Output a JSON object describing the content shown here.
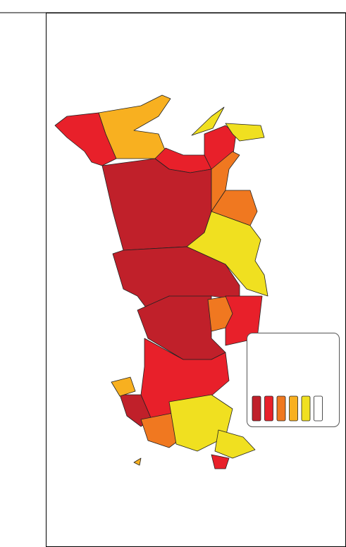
{
  "legend": {
    "colors": [
      "#c0202a",
      "#e8202a",
      "#f07820",
      "#f8b020",
      "#f0e020",
      "#ffffff"
    ]
  }
}
